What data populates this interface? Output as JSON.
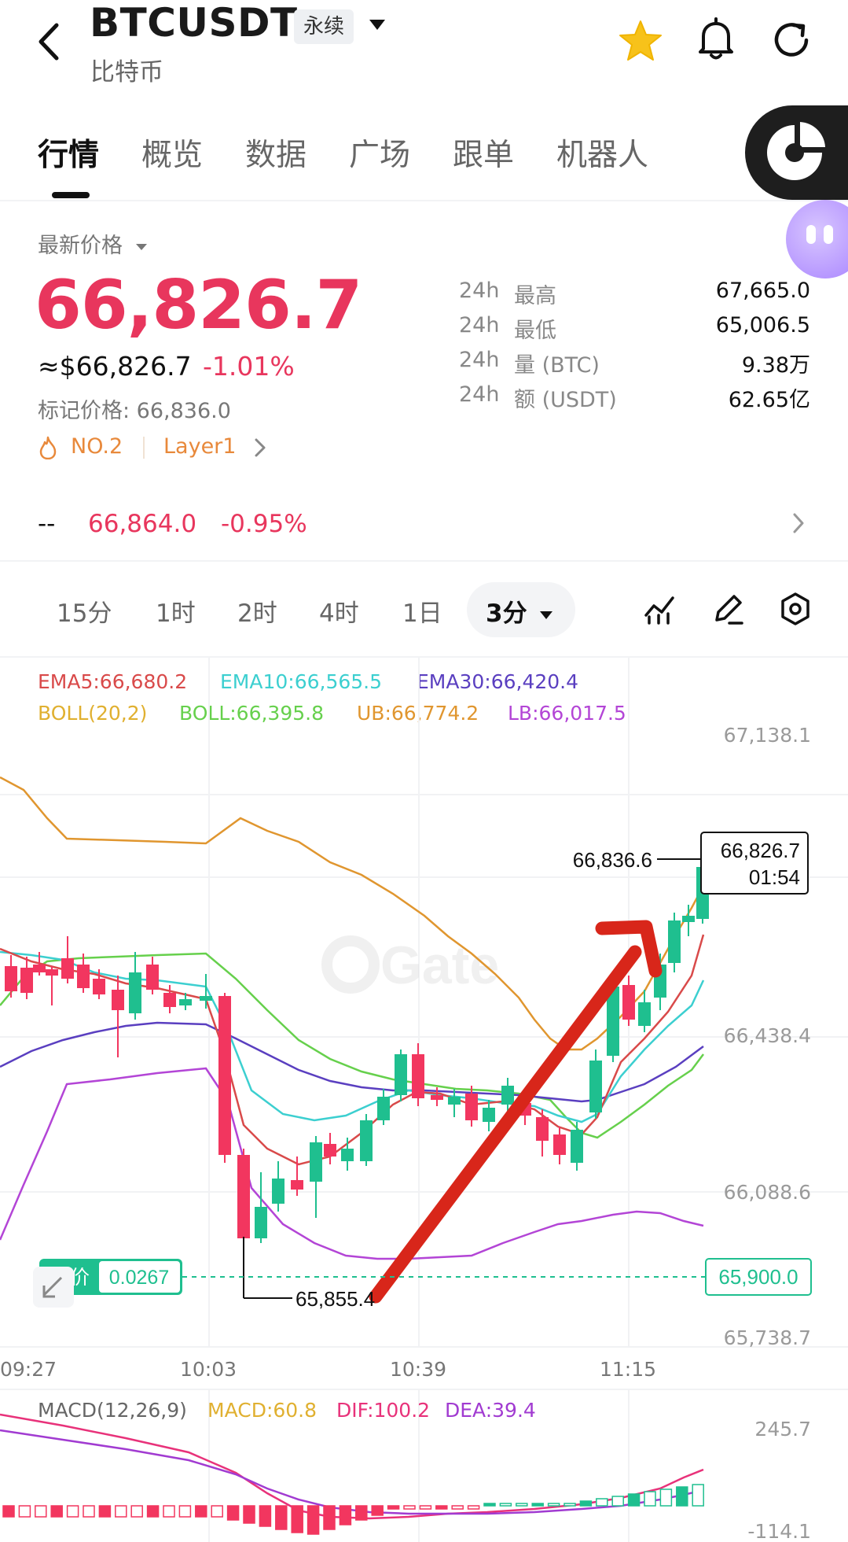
{
  "header": {
    "symbol": "BTCUSDT",
    "contract_type": "永续",
    "subtitle": "比特币"
  },
  "tabs": [
    "行情",
    "概览",
    "数据",
    "广场",
    "跟单",
    "机器人"
  ],
  "price_panel": {
    "label": "最新价格",
    "last_price": "66,826.7",
    "usd_price": "≈$66,826.7",
    "change_pct": "-1.01%",
    "mark_price": "标记价格: 66,836.0",
    "rank_tag": "NO.2",
    "sector_tag": "Layer1",
    "stats": [
      {
        "period": "24h",
        "label": "最高",
        "value": "67,665.0"
      },
      {
        "period": "24h",
        "label": "最低",
        "value": "65,006.5"
      },
      {
        "period": "24h",
        "label": "量 (BTC)",
        "value": "9.38万"
      },
      {
        "period": "24h",
        "label": "额 (USDT)",
        "value": "62.65亿"
      }
    ],
    "index_row": {
      "dash": "--",
      "price": "66,864.0",
      "change": "-0.95%"
    }
  },
  "intervals": [
    "15分",
    "1时",
    "2时",
    "4时",
    "1日"
  ],
  "selected_interval": "3分",
  "indicators": {
    "ema5": "EMA5:66,680.2",
    "ema10": "EMA10:66,565.5",
    "ema30": "EMA30:66,420.4",
    "boll": "BOLL(20,2)",
    "boll_mid": "BOLL:66,395.8",
    "ub": "UB:66,774.2",
    "lb": "LB:66,017.5"
  },
  "price_axis": [
    "67,138.1",
    "66,438.4",
    "66,088.6",
    "65,738.7"
  ],
  "time_axis": [
    "09:27",
    "10:03",
    "10:39",
    "11:15"
  ],
  "annotations": {
    "high_marker": "66,836.6",
    "low_marker": "65,855.4",
    "current_price_box": "66,826.7",
    "countdown": "01:54",
    "limit_label": "限价",
    "limit_value": "0.0267",
    "limit_price": "65,900.0"
  },
  "macd": {
    "title": "MACD(12,26,9)",
    "macd": "MACD:60.8",
    "dif": "DIF:100.2",
    "dea": "DEA:39.4",
    "axis_top": "245.7",
    "axis_bottom": "-114.1"
  },
  "colors": {
    "up": "#1fbf8f",
    "down": "#f2365f",
    "ema5": "#d94a4a",
    "ema10": "#3ccfd0",
    "ema30": "#5a3fc0",
    "boll_ub": "#e0962f",
    "boll_mid": "#66d04c",
    "boll_lb": "#b345d6",
    "arrow": "#d8261a"
  },
  "watermark": "Gate"
}
